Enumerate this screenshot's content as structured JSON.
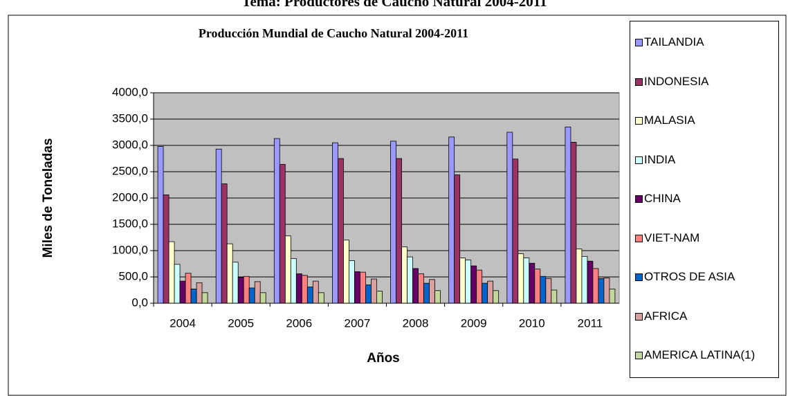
{
  "page_title": "Tema: Productores de Caucho Natural 2004-2011",
  "chart_data": {
    "type": "bar",
    "title": "Producción Mundial de Caucho Natural 2004-2011",
    "x_label": "Años",
    "y_label": "Miles de Toneladas",
    "categories": [
      "2004",
      "2005",
      "2006",
      "2007",
      "2008",
      "2009",
      "2010",
      "2011"
    ],
    "series": [
      {
        "name": "TAILANDIA",
        "color": "#9999ff",
        "values": [
          2980,
          2930,
          3130,
          3050,
          3080,
          3160,
          3250,
          3350
        ]
      },
      {
        "name": "INDONESIA",
        "color": "#993366",
        "values": [
          2060,
          2270,
          2640,
          2750,
          2750,
          2440,
          2740,
          3060
        ]
      },
      {
        "name": "MALASIA",
        "color": "#ffffcc",
        "values": [
          1170,
          1130,
          1280,
          1200,
          1070,
          860,
          940,
          1030
        ]
      },
      {
        "name": "INDIA",
        "color": "#ccffff",
        "values": [
          740,
          780,
          850,
          810,
          880,
          820,
          860,
          890
        ]
      },
      {
        "name": "CHINA",
        "color": "#660066",
        "values": [
          420,
          490,
          560,
          600,
          660,
          710,
          760,
          800
        ]
      },
      {
        "name": "VIET-NAM",
        "color": "#ff8080",
        "values": [
          570,
          510,
          530,
          590,
          560,
          630,
          650,
          660
        ]
      },
      {
        "name": "OTROS DE ASIA",
        "color": "#0066cc",
        "values": [
          270,
          290,
          310,
          350,
          380,
          380,
          510,
          470
        ]
      },
      {
        "name": "AFRICA",
        "color": "#d9a0a0",
        "values": [
          390,
          410,
          420,
          460,
          450,
          420,
          470,
          480
        ]
      },
      {
        "name": "AMERICA LATINA(1)",
        "color": "#c3d69b",
        "values": [
          200,
          200,
          200,
          230,
          240,
          240,
          250,
          270
        ]
      }
    ],
    "ylim": [
      0,
      4000
    ],
    "yticks": [
      {
        "value": 0,
        "label": "0,0"
      },
      {
        "value": 500,
        "label": "500,0"
      },
      {
        "value": 1000,
        "label": "1000,0"
      },
      {
        "value": 1500,
        "label": "1500,0"
      },
      {
        "value": 2000,
        "label": "2000,0"
      },
      {
        "value": 2500,
        "label": "2500,0"
      },
      {
        "value": 3000,
        "label": "3000,0"
      },
      {
        "value": 3500,
        "label": "3500,0"
      },
      {
        "value": 4000,
        "label": "4000,0"
      }
    ],
    "grid": true,
    "legend": "right"
  }
}
